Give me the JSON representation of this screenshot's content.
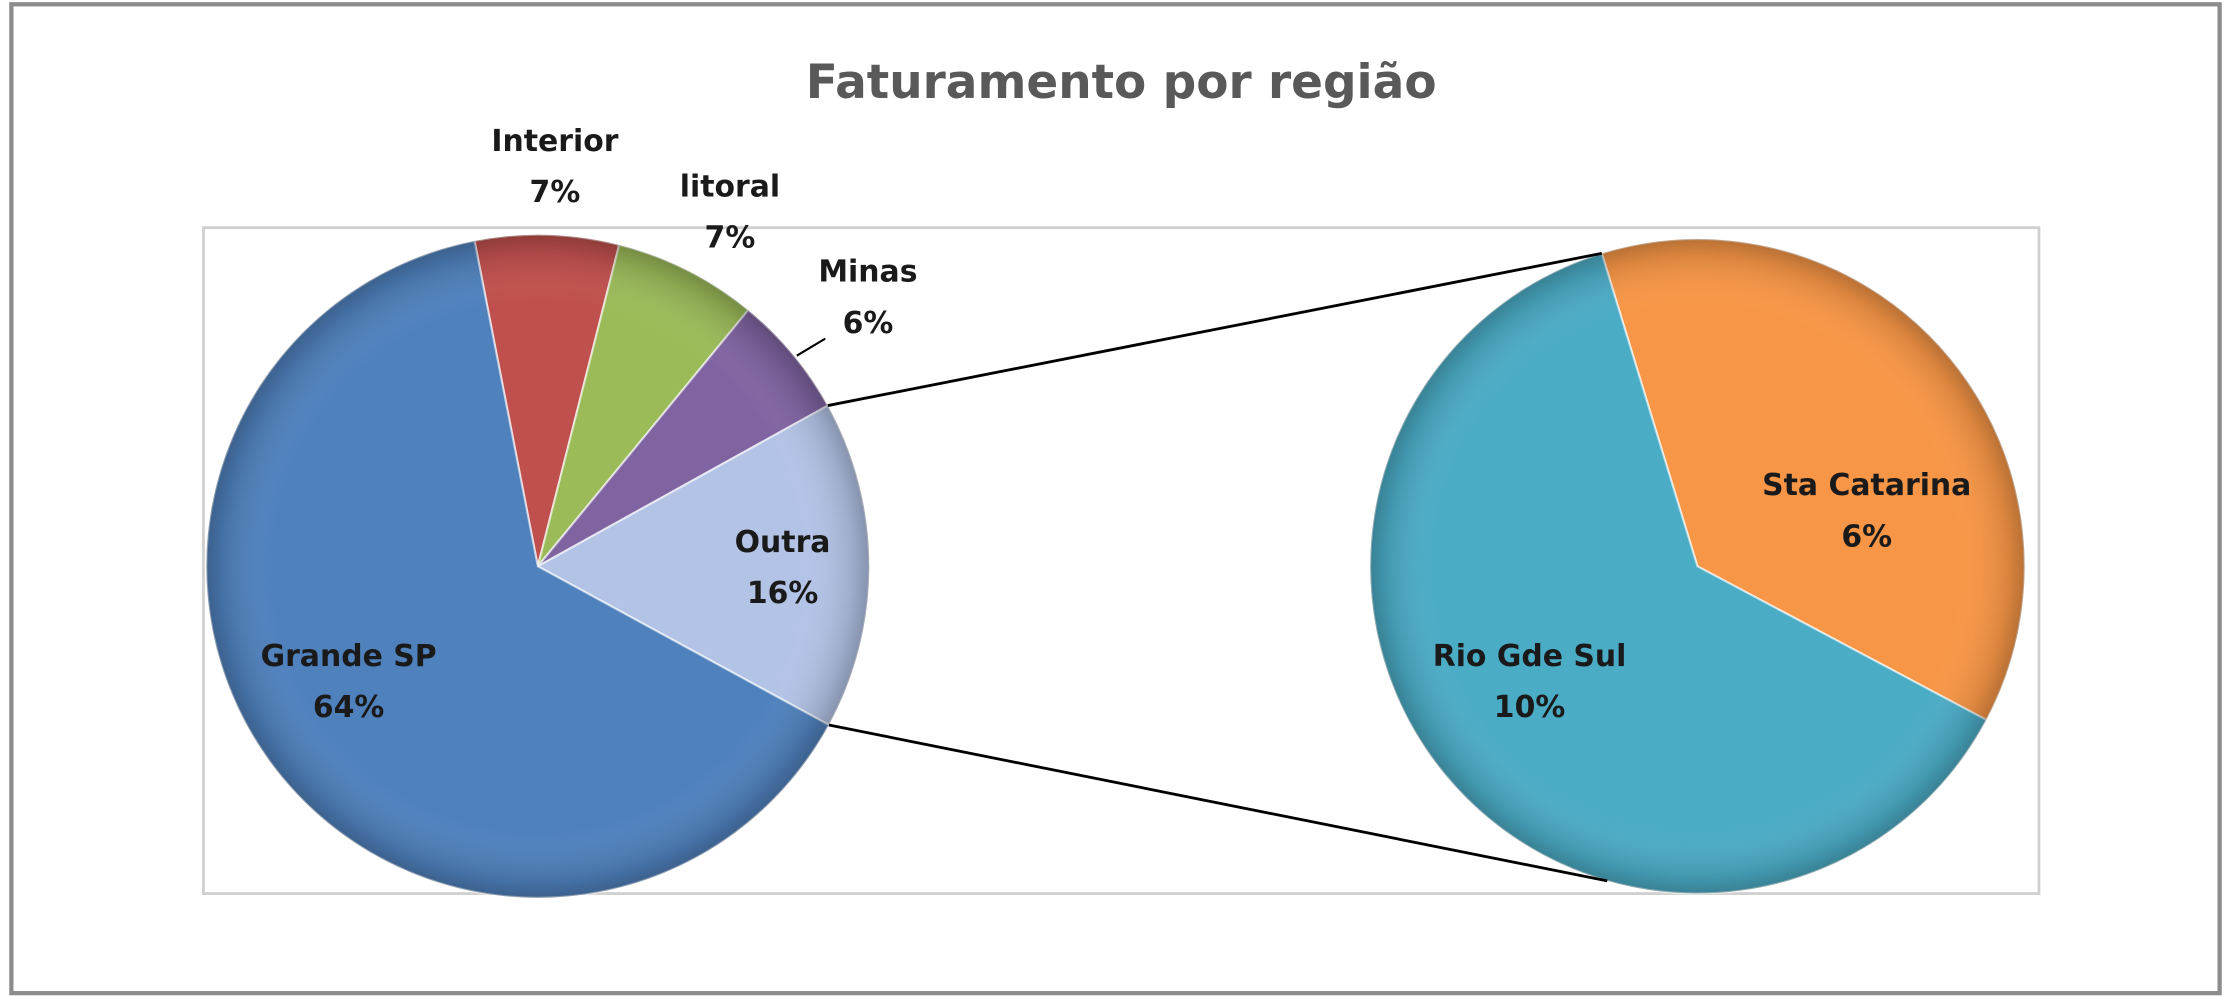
{
  "chart_data": {
    "type": "pie",
    "title": "Faturamento por região",
    "categories": [
      "Interior",
      "litoral",
      "Minas",
      "Outra",
      "Grande SP"
    ],
    "values": [
      7,
      7,
      6,
      16,
      64
    ],
    "value_labels": [
      "7%",
      "7%",
      "6%",
      "16%",
      "64%"
    ],
    "colors": [
      "#c0504d",
      "#9bbb59",
      "#8064a2",
      "#b3c3e6",
      "#4f81bd"
    ],
    "secondary": {
      "categories": [
        "Sta Catarina",
        "Rio Gde Sul"
      ],
      "values": [
        6,
        10
      ],
      "value_labels": [
        "6%",
        "10%"
      ],
      "colors": [
        "#f79646",
        "#4bacc6"
      ]
    }
  }
}
